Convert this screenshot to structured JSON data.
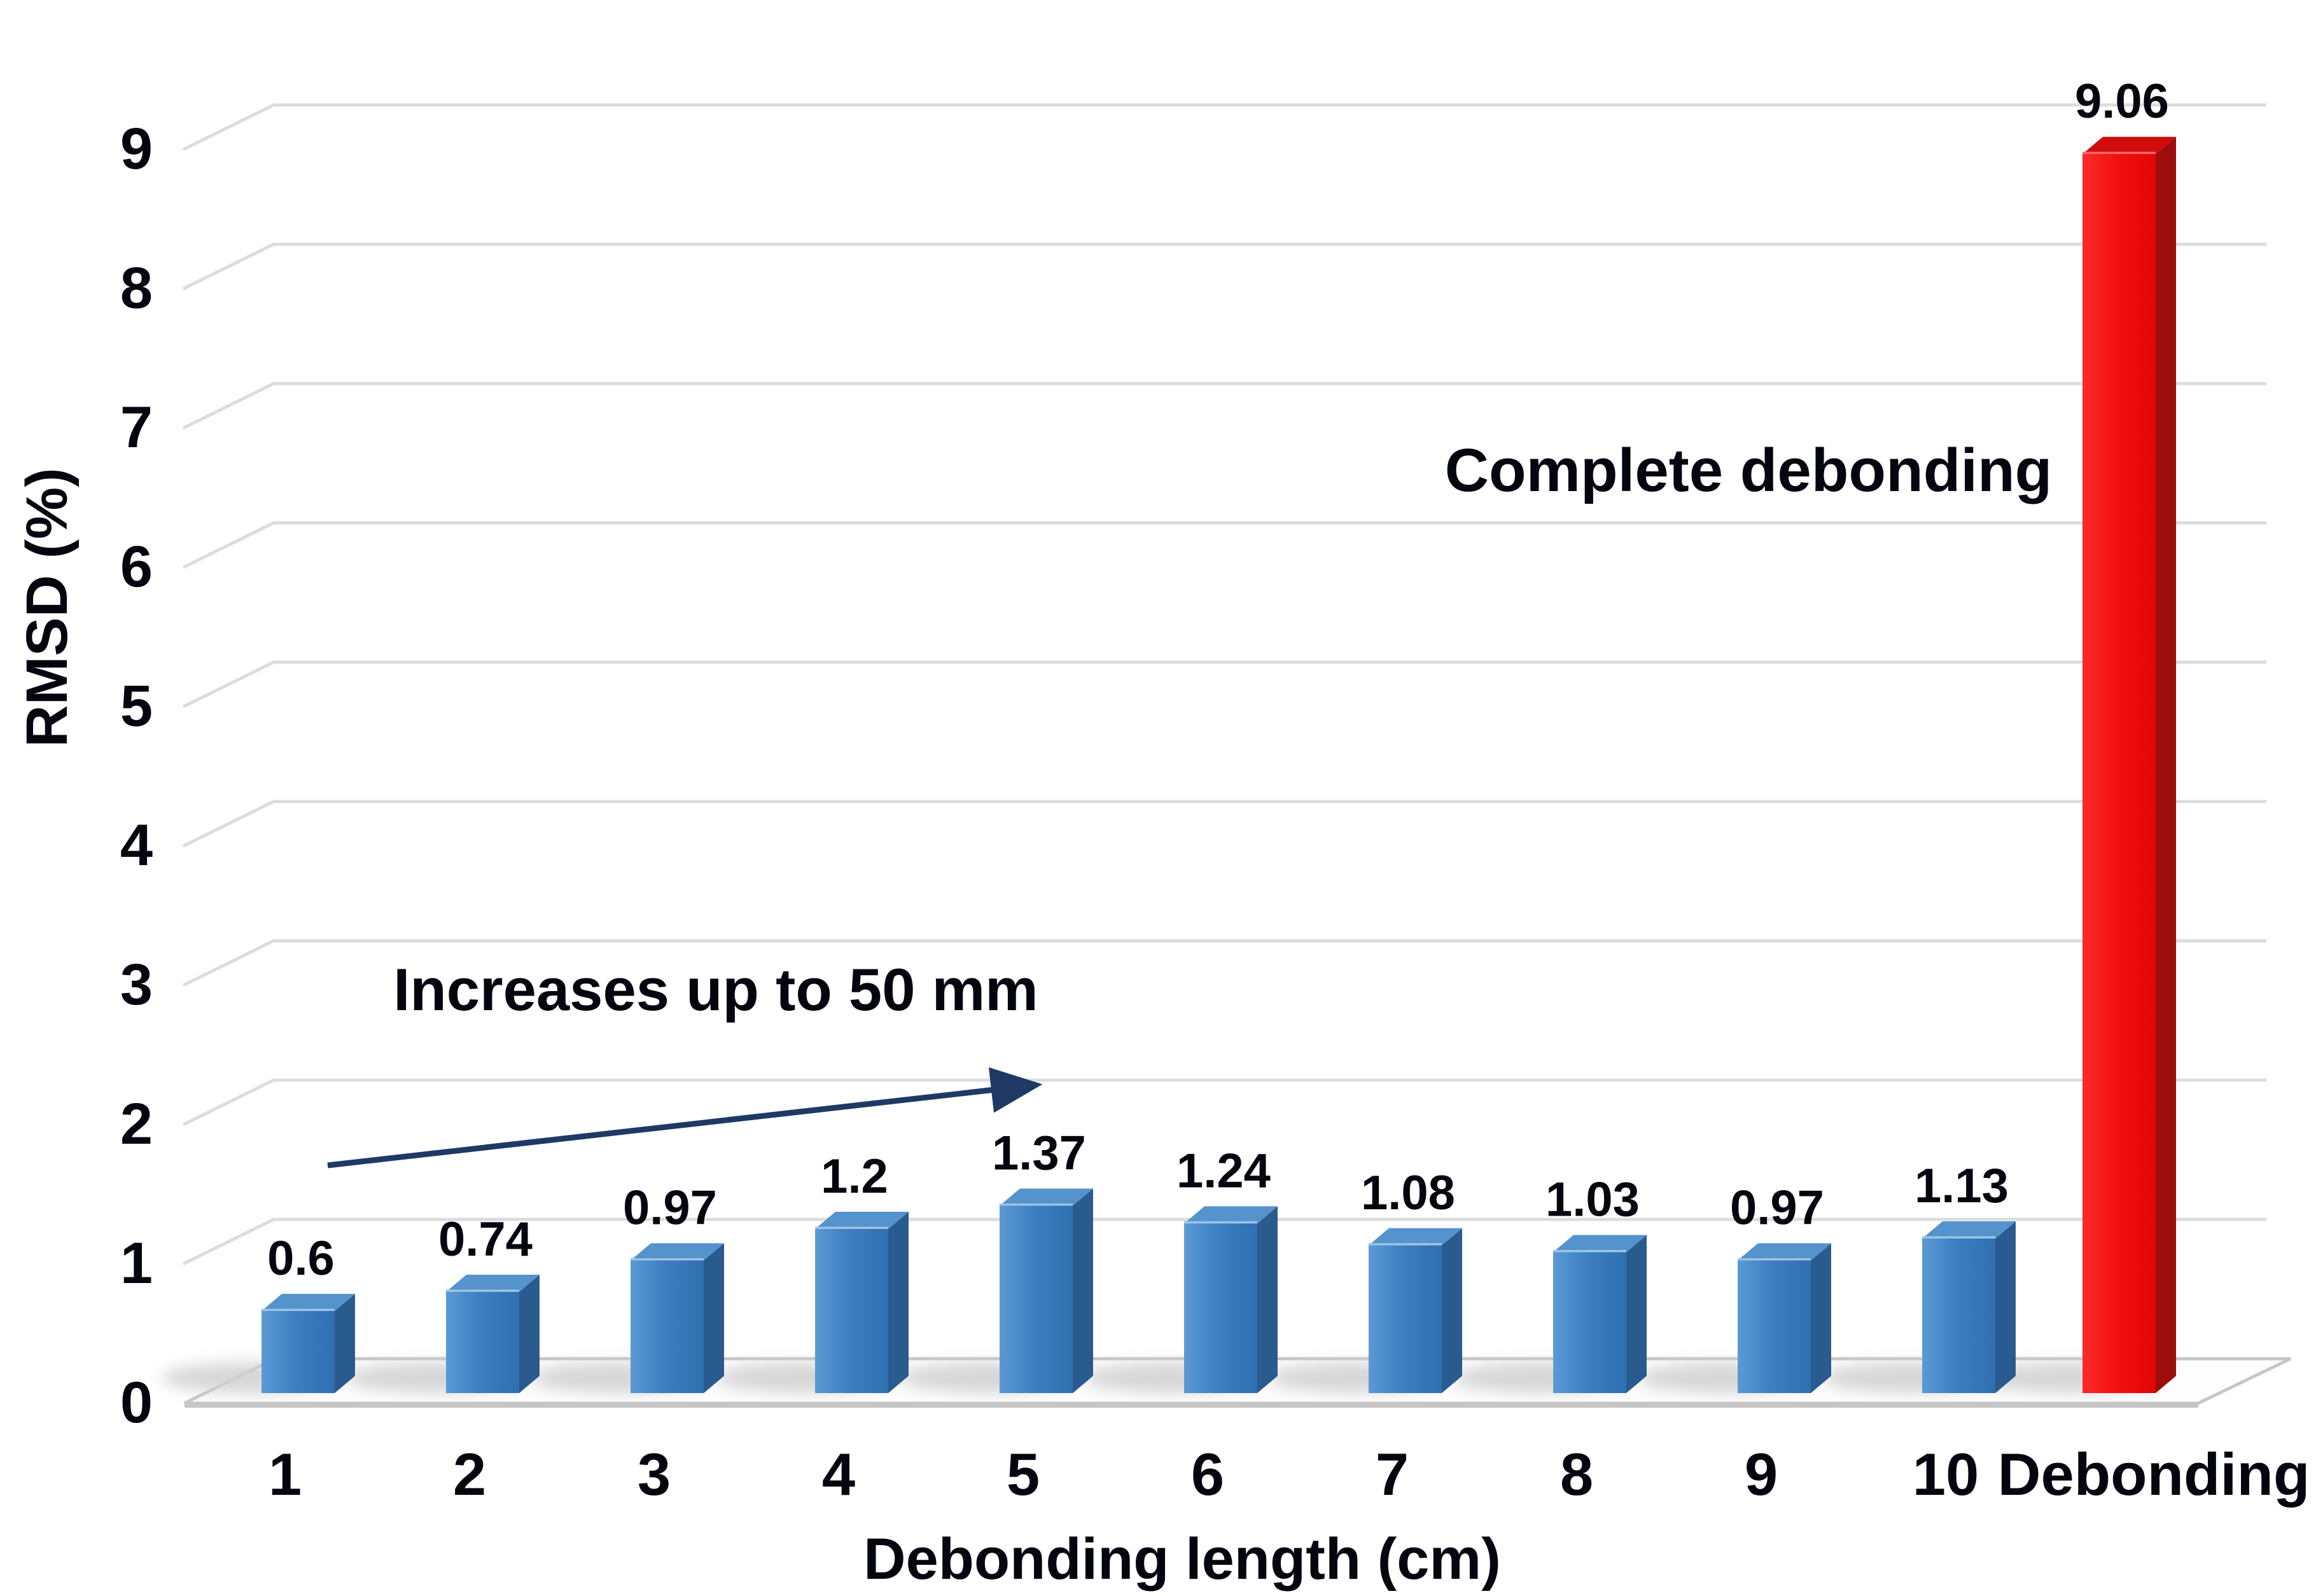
{
  "chart_data": {
    "type": "bar",
    "style": "3d-column",
    "title": "",
    "xlabel": "Debonding length (cm)",
    "ylabel": "RMSD (%)",
    "categories": [
      "1",
      "2",
      "3",
      "4",
      "5",
      "6",
      "7",
      "8",
      "9",
      "10",
      "Debonding"
    ],
    "values": [
      0.6,
      0.74,
      0.97,
      1.2,
      1.37,
      1.24,
      1.08,
      1.03,
      0.97,
      1.13,
      9.06
    ],
    "data_labels": [
      "0.6",
      "0.74",
      "0.97",
      "1.2",
      "1.37",
      "1.24",
      "1.08",
      "1.03",
      "0.97",
      "1.13",
      "9.06"
    ],
    "yticks": [
      "0",
      "1",
      "2",
      "3",
      "4",
      "5",
      "6",
      "7",
      "8",
      "9"
    ],
    "ylim": [
      0,
      9
    ],
    "grid": true,
    "legend_position": "none",
    "annotations": [
      {
        "id": "increase",
        "text": "Increases up to 50 mm",
        "color": "#1e3a64",
        "has_arrow": true
      },
      {
        "id": "complete",
        "text": "Complete debonding",
        "color": "#ee1111",
        "has_arrow": false
      }
    ],
    "series_colors": {
      "normal_front": "#3d7fc1",
      "normal_front_light": "#5b9ad4",
      "normal_front_dark": "#2e6fb0",
      "normal_side": "#2a5b8e",
      "normal_top": "#5493cb",
      "normal_top_highlight": "#9cc4e6",
      "debonding_front": "#f01010",
      "debonding_front_light": "#fb2a2a",
      "debonding_front_dark": "#e20505",
      "debonding_side": "#9e0d0d",
      "debonding_top": "#d00c0c",
      "debonding_top_highlight": "#ff6a6a"
    },
    "grid_color": "#dcdcdc",
    "floor_edge_color": "#c6c6c6",
    "shadow_color": "#d2d2d2",
    "text_color": "#050510"
  }
}
